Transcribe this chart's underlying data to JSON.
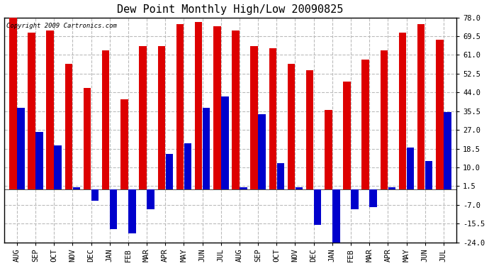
{
  "title": "Dew Point Monthly High/Low 20090825",
  "copyright": "Copyright 2009 Cartronics.com",
  "categories": [
    "AUG",
    "SEP",
    "OCT",
    "NOV",
    "DEC",
    "JAN",
    "FEB",
    "MAR",
    "APR",
    "MAY",
    "JUN",
    "JUL",
    "AUG",
    "SEP",
    "OCT",
    "NOV",
    "DEC",
    "JAN",
    "FEB",
    "MAR",
    "APR",
    "MAY",
    "JUN",
    "JUL"
  ],
  "highs": [
    78,
    71,
    72,
    57,
    46,
    63,
    41,
    65,
    65,
    75,
    76,
    74,
    72,
    65,
    64,
    57,
    54,
    36,
    49,
    59,
    63,
    71,
    75,
    68
  ],
  "lows": [
    37,
    26,
    20,
    1,
    -5,
    -18,
    -20,
    -9,
    16,
    21,
    37,
    42,
    1,
    34,
    12,
    1,
    -16,
    -24,
    -9,
    -8,
    1,
    19,
    13,
    35
  ],
  "high_color": "#dd0000",
  "low_color": "#0000cc",
  "bg_color": "#ffffff",
  "grid_color": "#bbbbbb",
  "ylim_lo": -24.0,
  "ylim_hi": 78.0,
  "yticks": [
    -24.0,
    -15.5,
    -7.0,
    1.5,
    10.0,
    18.5,
    27.0,
    35.5,
    44.0,
    52.5,
    61.0,
    69.5,
    78.0
  ],
  "bar_width": 0.4,
  "bar_gap": 0.02,
  "title_fontsize": 11,
  "tick_fontsize": 7.5,
  "copyright_fontsize": 6.5
}
